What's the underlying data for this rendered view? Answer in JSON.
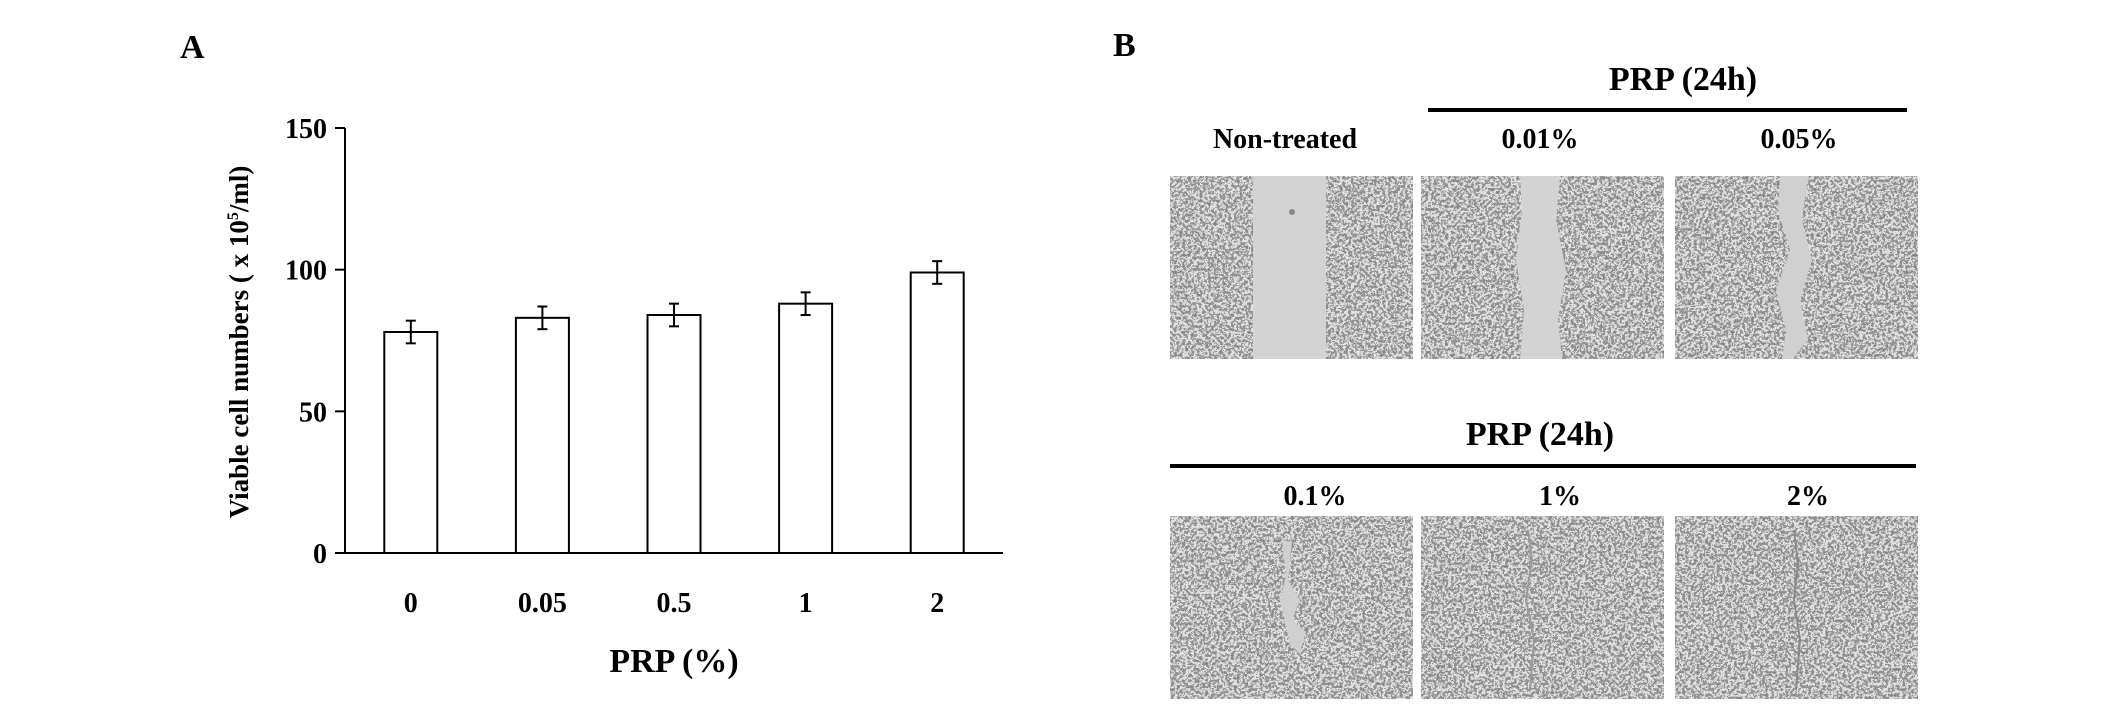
{
  "panel_a_label": "A",
  "panel_b_label": "B",
  "chart_data": {
    "type": "bar",
    "categories": [
      "0",
      "0.05",
      "0.5",
      "1",
      "2"
    ],
    "values": [
      78,
      83,
      84,
      88,
      99
    ],
    "errors": [
      4,
      4,
      4,
      4,
      4
    ],
    "xlabel": "PRP (%)",
    "ylabel_main": "Viable cell numbers ( x 10",
    "ylabel_sup": "5",
    "ylabel_tail": "/ml)",
    "ylim": [
      0,
      150
    ],
    "yticks": [
      0,
      50,
      100,
      150
    ],
    "grid": false,
    "bar_fill": "#ffffff",
    "bar_edge": "#000000"
  },
  "panel_b": {
    "header_top": "PRP (24h)",
    "header_bottom": "PRP (24h)",
    "top_row": [
      "Non-treated",
      "0.01%",
      "0.05%"
    ],
    "bottom_row": [
      "0.1%",
      "1%",
      "2%"
    ],
    "colors": {
      "cells": "#3e3e3e",
      "gap": "#d2d2d2"
    }
  }
}
